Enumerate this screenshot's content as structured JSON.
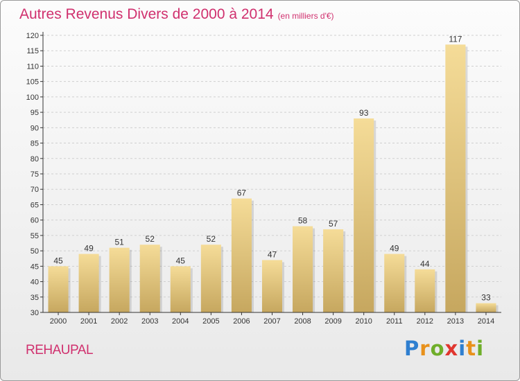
{
  "title": "Autres Revenus Divers de 2000 à 2014",
  "unit": "(en milliers d'€)",
  "place": "REHAUPAL",
  "logo": {
    "text": "Proxiti",
    "letters": [
      {
        "ch": "P",
        "color": "#2f7fd0"
      },
      {
        "ch": "r",
        "color": "#e8911b"
      },
      {
        "ch": "o",
        "color": "#6fae2a"
      },
      {
        "ch": "x",
        "color": "#e0362f"
      },
      {
        "ch": "i",
        "color": "#2f7fd0"
      },
      {
        "ch": "t",
        "color": "#e8911b"
      },
      {
        "ch": "i",
        "color": "#6fae2a"
      }
    ]
  },
  "colors": {
    "accent": "#d0306e",
    "bar_light": "#f5dc98",
    "bar_dark": "#c6a75f",
    "axis": "#333333",
    "grid": "#cfcfcf"
  },
  "chart_data": {
    "type": "bar",
    "categories": [
      "2000",
      "2001",
      "2002",
      "2003",
      "2004",
      "2005",
      "2006",
      "2007",
      "2008",
      "2009",
      "2010",
      "2011",
      "2012",
      "2013",
      "2014"
    ],
    "values": [
      45,
      49,
      51,
      52,
      45,
      52,
      67,
      47,
      58,
      57,
      93,
      49,
      44,
      117,
      33
    ],
    "ylim": [
      30,
      120
    ],
    "ytick_step": 5,
    "yticks": [
      "30",
      "35",
      "40",
      "45",
      "50",
      "55",
      "60",
      "65",
      "70",
      "75",
      "80",
      "85",
      "90",
      "95",
      "100",
      "105",
      "110",
      "115",
      "120"
    ],
    "grid": true,
    "xlabel": "",
    "ylabel": ""
  }
}
